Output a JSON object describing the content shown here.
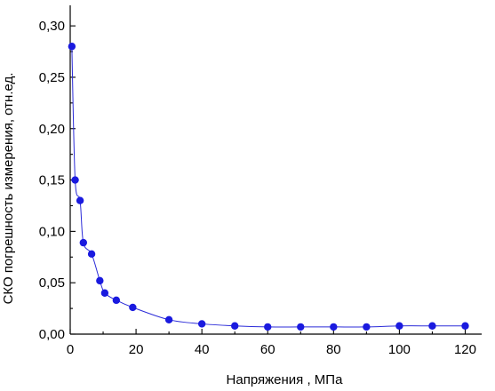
{
  "chart_data": {
    "type": "scatter",
    "xlabel": "Напряжения , МПа",
    "ylabel": "СКО погрешность измерения, отн.ед.",
    "xlim": [
      0,
      125
    ],
    "ylim": [
      0,
      0.32
    ],
    "x_ticks": [
      0,
      20,
      40,
      60,
      80,
      100,
      120
    ],
    "y_ticks": [
      0.0,
      0.05,
      0.1,
      0.15,
      0.2,
      0.25,
      0.3
    ],
    "x_tick_labels": [
      "0",
      "20",
      "40",
      "60",
      "80",
      "100",
      "120"
    ],
    "y_tick_labels": [
      "0,00",
      "0,05",
      "0,10",
      "0,15",
      "0,20",
      "0,25",
      "0,30"
    ],
    "grid": false,
    "colors": {
      "marker": "#1a1adf",
      "line": "#2b2bd8"
    },
    "series": [
      {
        "x": [
          0.5,
          1.5,
          3,
          4,
          6.5,
          9,
          10.5,
          14,
          19,
          30,
          40,
          50,
          60,
          70,
          80,
          90,
          100,
          110,
          120
        ],
        "y": [
          0.28,
          0.15,
          0.13,
          0.089,
          0.078,
          0.052,
          0.04,
          0.033,
          0.026,
          0.014,
          0.01,
          0.008,
          0.007,
          0.007,
          0.007,
          0.007,
          0.008,
          0.008,
          0.008
        ]
      }
    ]
  }
}
